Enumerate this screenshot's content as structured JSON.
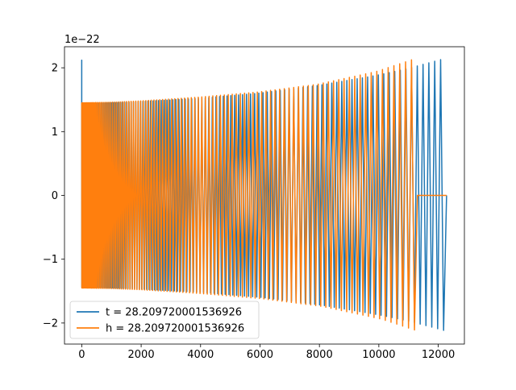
{
  "chart_data": {
    "type": "line",
    "offset_label": "1e−22",
    "xlim": [
      -580,
      12880
    ],
    "ylim": [
      -2.33,
      2.33
    ],
    "x_ticks": [
      0,
      2000,
      4000,
      6000,
      8000,
      10000,
      12000
    ],
    "x_tick_labels": [
      "0",
      "2000",
      "4000",
      "6000",
      "8000",
      "10000",
      "12000"
    ],
    "y_ticks": [
      -2,
      -1,
      0,
      1,
      2
    ],
    "y_tick_labels": [
      "−2",
      "−1",
      "0",
      "1",
      "2"
    ],
    "grid": false,
    "legend_position": "lower-left",
    "series": [
      {
        "name": "t = 28.209720001536926",
        "color": "#1f77b4",
        "x_start": 0,
        "x_end": 12280,
        "cycles": 118,
        "envelope_x": [
          0,
          1000,
          2000,
          4000,
          6000,
          8000,
          10000,
          11000,
          12280
        ],
        "envelope_y": [
          1.44,
          1.45,
          1.47,
          1.52,
          1.6,
          1.72,
          1.88,
          1.98,
          2.14
        ],
        "initial_spike": 2.12
      },
      {
        "name": "h = 28.209720001536926",
        "color": "#ff7f0e",
        "x_start": 0,
        "x_end": 12280,
        "zero_before": 950,
        "active_start": 0,
        "active_end": 11300,
        "cycles": 108,
        "envelope_x": [
          0,
          1000,
          2000,
          4000,
          6000,
          8000,
          10000,
          11300
        ],
        "envelope_y": [
          1.45,
          1.46,
          1.48,
          1.54,
          1.62,
          1.74,
          1.94,
          2.14
        ]
      }
    ]
  }
}
